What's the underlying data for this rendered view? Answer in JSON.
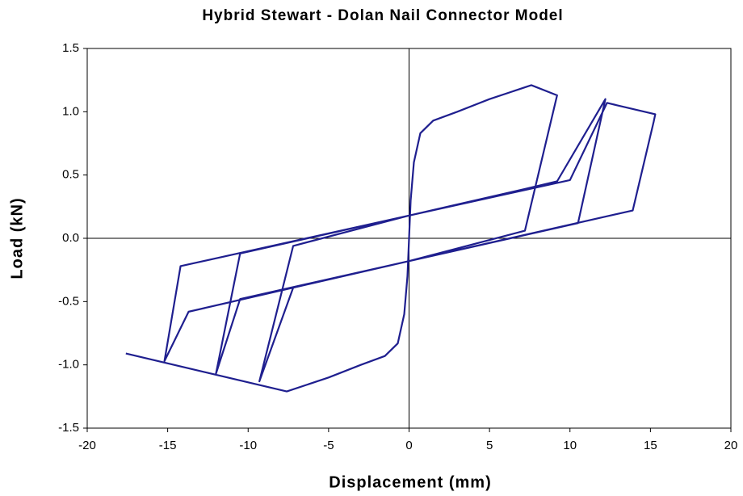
{
  "chart_data": {
    "type": "line",
    "title": "Hybrid Stewart - Dolan Nail Connector Model",
    "x_label": "Displacement (mm)",
    "y_label": "Load (kN)",
    "x": [
      0,
      0.1,
      0.3,
      0.7,
      1.5,
      3,
      5,
      7.6,
      9.2,
      7.2,
      0,
      -7.2,
      -9.3,
      -7.2,
      0,
      7.2,
      9.2,
      12.2,
      10.5,
      0,
      -10.5,
      -12,
      -10.5,
      0,
      10,
      12.3,
      15.3,
      15.2,
      13.9,
      0,
      -13.7,
      -15.2,
      -14.2,
      0,
      null,
      0,
      -0.1,
      -0.3,
      -0.7,
      -1.5,
      -3,
      -5,
      -7.6,
      -17.6
    ],
    "series": [
      {
        "color": "#1f1f8f",
        "values": [
          0,
          0.3,
          0.6,
          0.83,
          0.93,
          1.0,
          1.1,
          1.21,
          1.13,
          0.06,
          -0.18,
          -0.39,
          -1.13,
          -0.06,
          0.18,
          0.39,
          0.45,
          1.1,
          0.12,
          -0.18,
          -0.48,
          -1.07,
          -0.12,
          0.18,
          0.46,
          1.07,
          0.98,
          0.92,
          0.22,
          -0.18,
          -0.58,
          -0.97,
          -0.22,
          0.18,
          null,
          0,
          -0.3,
          -0.6,
          -0.83,
          -0.93,
          -1.0,
          -1.1,
          -1.21,
          -0.91
        ]
      }
    ],
    "xlim": [
      -20,
      20
    ],
    "ylim": [
      -1.5,
      1.5
    ],
    "xticks": [
      -20,
      -15,
      -10,
      -5,
      0,
      5,
      10,
      15,
      20
    ],
    "yticks": [
      {
        "value": 1.5,
        "label": "1.5"
      },
      {
        "value": 1.0,
        "label": "1.0"
      },
      {
        "value": 0.5,
        "label": "0.5"
      },
      {
        "value": 0.0,
        "label": "0.0"
      },
      {
        "value": -0.5,
        "label": "-0.5"
      },
      {
        "value": -1.0,
        "label": "-1.0"
      },
      {
        "value": -1.5,
        "label": "-1.5"
      }
    ]
  }
}
